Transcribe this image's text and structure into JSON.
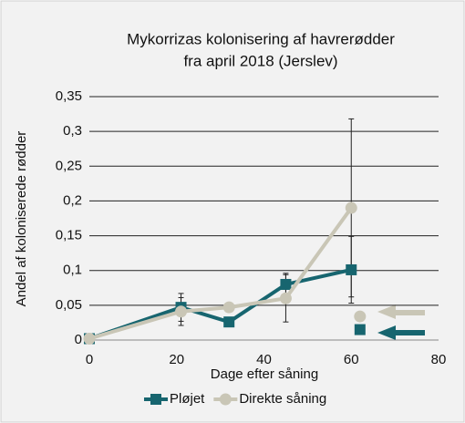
{
  "chart_data": {
    "type": "line",
    "title": [
      "Mykorrizas kolonisering af havrerødder",
      "fra april 2018 (Jerslev)"
    ],
    "xlabel": "Dage efter såning",
    "ylabel": "Andel af koloniserede rødder",
    "x": [
      0,
      21,
      32,
      45,
      60
    ],
    "series": [
      {
        "name": "Pløjet",
        "color": "#17656f",
        "marker": "square",
        "values": [
          0.002,
          0.047,
          0.026,
          0.08,
          0.101
        ],
        "errors": [
          0,
          0.02,
          0.004,
          0.016,
          0.048
        ]
      },
      {
        "name": "Direkte såning",
        "color": "#c9c6b6",
        "marker": "circle",
        "values": [
          0.002,
          0.041,
          0.047,
          0.06,
          0.19
        ],
        "errors": [
          0,
          0.02,
          0.004,
          0.034,
          0.128
        ]
      }
    ],
    "extra_points": [
      {
        "series": 0,
        "x": 62,
        "y": 0.015
      },
      {
        "series": 1,
        "x": 62,
        "y": 0.034
      }
    ],
    "xlim": [
      0,
      80
    ],
    "xticks": [
      0,
      20,
      40,
      60,
      80
    ],
    "ylim": [
      0,
      0.35
    ],
    "yticks": [
      0,
      {
        "value": 0.05,
        "label": "0,05"
      },
      {
        "value": 0.1,
        "label": "0,1"
      },
      {
        "value": 0.15,
        "label": "0,15"
      },
      {
        "value": 0.2,
        "label": "0,2"
      },
      {
        "value": 0.25,
        "label": "0,25"
      },
      {
        "value": 0.3,
        "label": "0,3"
      },
      {
        "value": 0.35,
        "label": "0,35"
      }
    ],
    "grid": true
  }
}
